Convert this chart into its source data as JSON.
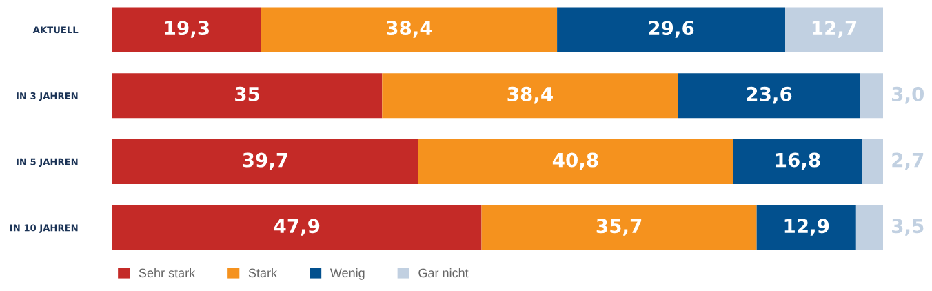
{
  "chart_data": {
    "type": "bar",
    "orientation": "horizontal",
    "stacked": true,
    "categories": [
      "AKTUELL",
      "IN 3 JAHREN",
      "IN 5 JAHREN",
      "IN 10 JAHREN"
    ],
    "series": [
      {
        "name": "Sehr stark",
        "color": "#c42a27",
        "values": [
          19.3,
          35,
          39.7,
          47.9
        ],
        "value_labels": [
          "19,3",
          "35",
          "39,7",
          "47,9"
        ]
      },
      {
        "name": "Stark",
        "color": "#f5921e",
        "values": [
          38.4,
          38.4,
          40.8,
          35.7
        ],
        "value_labels": [
          "38,4",
          "38,4",
          "40,8",
          "35,7"
        ]
      },
      {
        "name": "Wenig",
        "color": "#02508e",
        "values": [
          29.6,
          23.6,
          16.8,
          12.9
        ],
        "value_labels": [
          "29,6",
          "23,6",
          "16,8",
          "12,9"
        ]
      },
      {
        "name": "Gar nicht",
        "color": "#c1d0e1",
        "values": [
          12.7,
          3.0,
          2.7,
          3.5
        ],
        "value_labels": [
          "12,7",
          "3,0",
          "2,7",
          "3,5"
        ]
      }
    ],
    "legend": "bottom",
    "tick_labels": "y"
  }
}
